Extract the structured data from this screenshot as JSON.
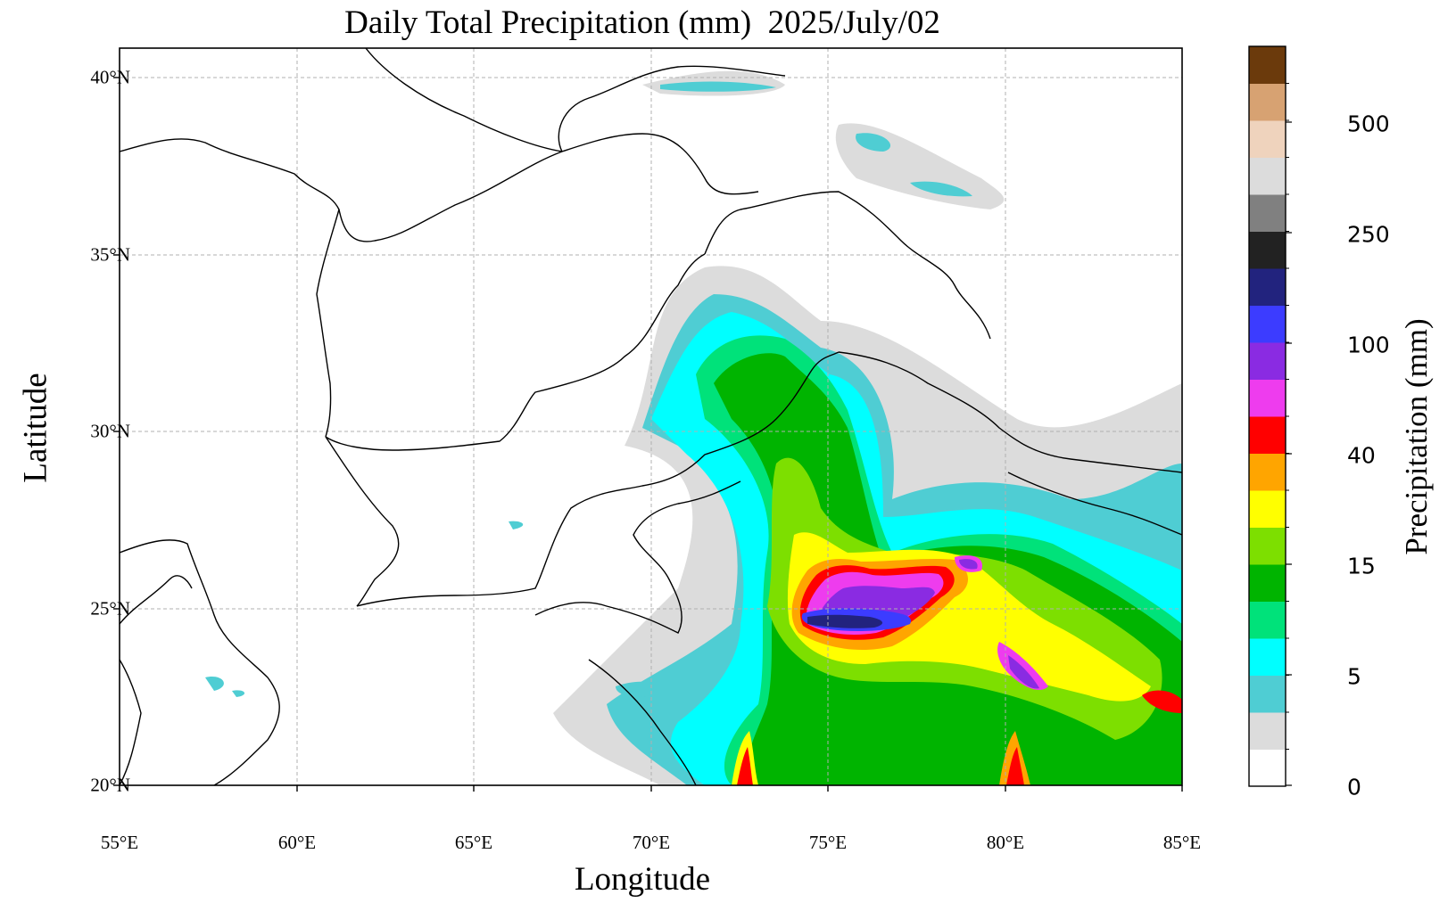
{
  "title": "Daily Total Precipitation (mm)  2025/July/02",
  "xlabel": "Longitude",
  "ylabel": "Latitude",
  "x_ticks": [
    "55°E",
    "60°E",
    "65°E",
    "70°E",
    "75°E",
    "80°E",
    "85°E"
  ],
  "y_ticks": [
    "20°N",
    "25°N",
    "30°N",
    "35°N",
    "40°N"
  ],
  "colorbar": {
    "label": "Precipitation (mm)",
    "tick_labels": [
      "0",
      "5",
      "15",
      "40",
      "100",
      "250",
      "500"
    ],
    "colors": [
      "#ffffff",
      "#dcdcdc",
      "#4fcdd3",
      "#00ffff",
      "#00e27a",
      "#00b400",
      "#7ddf00",
      "#ffff00",
      "#ffa500",
      "#ff0000",
      "#ee3cee",
      "#8a2be2",
      "#3c3cff",
      "#22237e",
      "#222222",
      "#808080",
      "#dcdcdc",
      "#efd3bd",
      "#d7a272",
      "#6b3a0c"
    ]
  },
  "map": {
    "extent": {
      "lon": [
        55,
        85
      ],
      "lat": [
        20,
        40.8
      ]
    },
    "gridlines": true
  }
}
